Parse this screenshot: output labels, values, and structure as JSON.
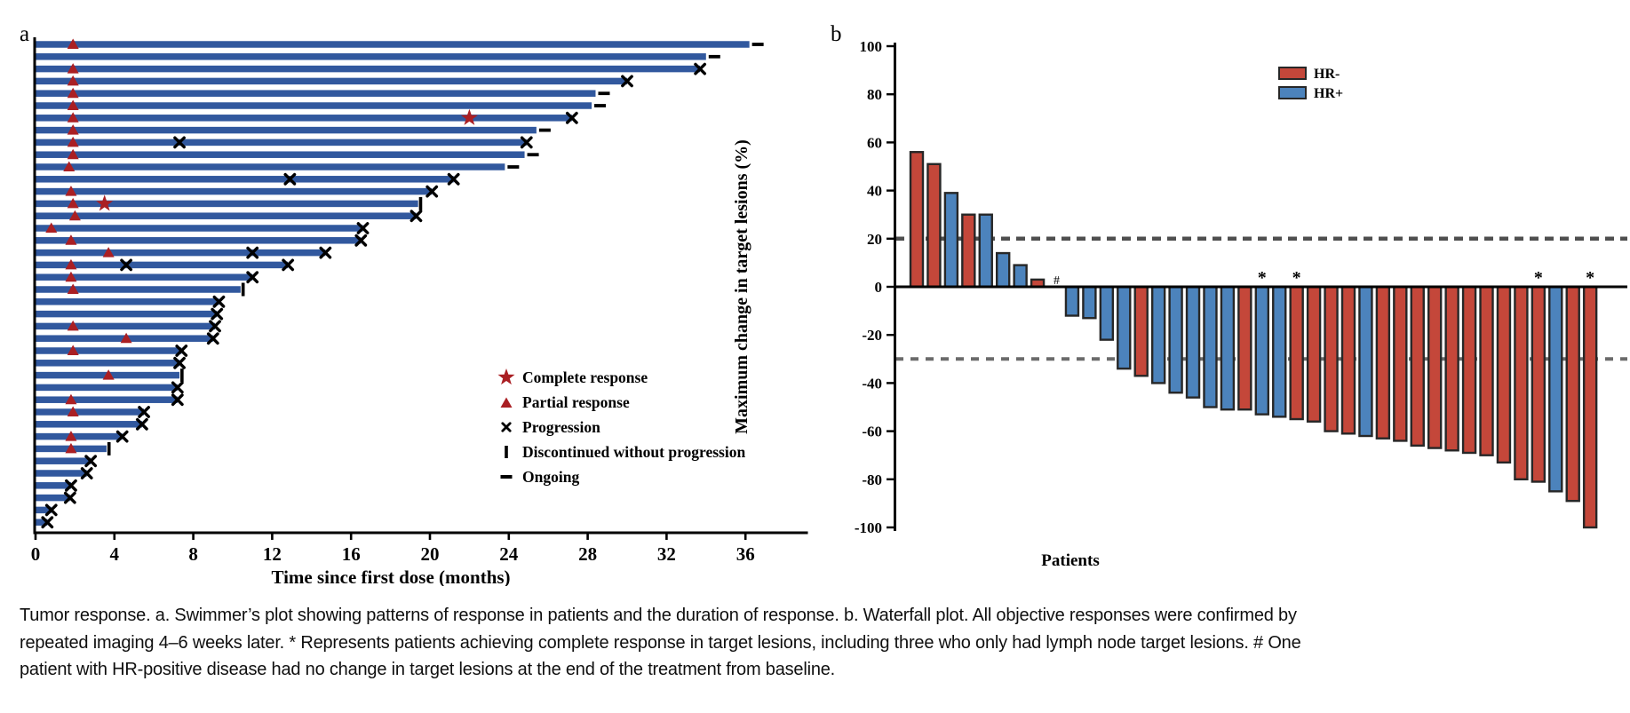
{
  "figure": {
    "panel_a_label": "a",
    "panel_b_label": "b",
    "caption": "Tumor response. a. Swimmer’s plot showing patterns of response in patients and the duration of response. b. Waterfall plot. All objective responses were confirmed by repeated imaging 4–6 weeks later. * Represents patients achieving complete response in target lesions, including three who only had lymph node target lesions. # One patient with HR-positive disease had no change in target lesions at the end of the treatment from baseline."
  },
  "colors": {
    "swimmer_bar": "#31589e",
    "marker_red": "#aa1f23",
    "hr_neg": "#c4473a",
    "hr_pos": "#4c83bc",
    "bar_outline": "#272727",
    "dash_line_upper": "#4f4f4f",
    "dash_line_lower": "#6b6b6b",
    "axis_black": "#000000"
  },
  "chart_data": [
    {
      "type": "swimmer",
      "title": "",
      "xlabel": "Time since first dose (months)",
      "x_ticks": [
        0,
        4,
        8,
        12,
        16,
        20,
        24,
        28,
        32,
        36
      ],
      "xlim": [
        0,
        39.2
      ],
      "legend": [
        {
          "marker": "star",
          "label": "Complete response"
        },
        {
          "marker": "triangle",
          "label": "Partial response"
        },
        {
          "marker": "x",
          "label": "Progression"
        },
        {
          "marker": "vbar",
          "label": "Discontinued without progression"
        },
        {
          "marker": "dash",
          "label": "Ongoing"
        }
      ],
      "patients": [
        {
          "bar": 36.2,
          "pr": 1.9,
          "end": "ongoing"
        },
        {
          "bar": 34.0,
          "end": "ongoing"
        },
        {
          "bar": 33.7,
          "pr": 1.9,
          "end": "progression"
        },
        {
          "bar": 30.0,
          "pr": 1.9,
          "end": "progression"
        },
        {
          "bar": 28.4,
          "pr": 1.9,
          "end": "ongoing"
        },
        {
          "bar": 28.2,
          "pr": 1.9,
          "end": "ongoing"
        },
        {
          "bar": 27.2,
          "pr": 1.9,
          "cr": 22.0,
          "end": "progression"
        },
        {
          "bar": 25.4,
          "pr": 1.9,
          "end": "ongoing"
        },
        {
          "bar": 24.9,
          "pr": 1.9,
          "x": [
            7.3
          ],
          "end": "progression"
        },
        {
          "bar": 24.8,
          "pr": 1.9,
          "end": "ongoing"
        },
        {
          "bar": 23.8,
          "pr": 1.7,
          "end": "ongoing"
        },
        {
          "bar": 21.2,
          "x": [
            12.9
          ],
          "end": "progression"
        },
        {
          "bar": 20.1,
          "pr": 1.8,
          "end": "progression"
        },
        {
          "bar": 19.4,
          "pr": 1.9,
          "cr": 3.5,
          "end": "discontinued"
        },
        {
          "bar": 19.3,
          "pr": 2.0,
          "end": "progression"
        },
        {
          "bar": 16.6,
          "pr": 0.8,
          "end": "progression"
        },
        {
          "bar": 16.5,
          "pr": 1.8,
          "end": "progression"
        },
        {
          "bar": 14.7,
          "pr": 3.7,
          "x": [
            11.0
          ],
          "end": "progression"
        },
        {
          "bar": 12.8,
          "pr": 1.8,
          "x": [
            4.6
          ],
          "end": "progression"
        },
        {
          "bar": 11.0,
          "pr": 1.8,
          "end": "progression"
        },
        {
          "bar": 10.4,
          "pr": 1.9,
          "end": "discontinued"
        },
        {
          "bar": 9.3,
          "end": "progression"
        },
        {
          "bar": 9.2,
          "end": "progression"
        },
        {
          "bar": 9.1,
          "pr": 1.9,
          "end": "progression"
        },
        {
          "bar": 9.0,
          "pr": 4.6,
          "end": "progression"
        },
        {
          "bar": 7.4,
          "pr": 1.9,
          "end": "progression"
        },
        {
          "bar": 7.3,
          "end": "progression"
        },
        {
          "bar": 7.3,
          "pr": 3.7,
          "end": "discontinued"
        },
        {
          "bar": 7.2,
          "end": "progression"
        },
        {
          "bar": 7.2,
          "pr": 1.8,
          "end": "progression"
        },
        {
          "bar": 5.5,
          "pr": 1.9,
          "end": "progression"
        },
        {
          "bar": 5.4,
          "end": "progression"
        },
        {
          "bar": 4.4,
          "pr": 1.8,
          "end": "progression"
        },
        {
          "bar": 3.6,
          "pr": 1.8,
          "end": "discontinued"
        },
        {
          "bar": 2.8,
          "end": "progression"
        },
        {
          "bar": 2.6,
          "end": "progression"
        },
        {
          "bar": 1.8,
          "end": "progression"
        },
        {
          "bar": 1.75,
          "end": "progression"
        },
        {
          "bar": 0.8,
          "end": "progression"
        },
        {
          "bar": 0.6,
          "end": "progression"
        }
      ]
    },
    {
      "type": "waterfall-bar",
      "ylabel": "Maximum change in target lesions (%)",
      "xlabel": "Patients",
      "y_ticks": [
        100,
        80,
        60,
        40,
        20,
        0,
        -20,
        -40,
        -60,
        -80,
        -100
      ],
      "ylim": [
        -100,
        100
      ],
      "reference_lines": [
        20,
        -30
      ],
      "legend": [
        {
          "label": "HR-",
          "group": "HR-"
        },
        {
          "label": "HR+",
          "group": "HR+"
        }
      ],
      "hash_symbol": "#",
      "star_symbol": "*",
      "bars": [
        {
          "v": 56,
          "g": "HR-"
        },
        {
          "v": 51,
          "g": "HR-"
        },
        {
          "v": 39,
          "g": "HR+"
        },
        {
          "v": 30,
          "g": "HR-"
        },
        {
          "v": 30,
          "g": "HR+"
        },
        {
          "v": 14,
          "g": "HR+"
        },
        {
          "v": 9,
          "g": "HR+"
        },
        {
          "v": 3,
          "g": "HR-"
        },
        {
          "v": 0,
          "g": "HR+",
          "hash": true
        },
        {
          "v": -12,
          "g": "HR+"
        },
        {
          "v": -13,
          "g": "HR+"
        },
        {
          "v": -22,
          "g": "HR+"
        },
        {
          "v": -34,
          "g": "HR+"
        },
        {
          "v": -37,
          "g": "HR-"
        },
        {
          "v": -40,
          "g": "HR+"
        },
        {
          "v": -44,
          "g": "HR+"
        },
        {
          "v": -46,
          "g": "HR+"
        },
        {
          "v": -50,
          "g": "HR+"
        },
        {
          "v": -51,
          "g": "HR+"
        },
        {
          "v": -51,
          "g": "HR-"
        },
        {
          "v": -53,
          "g": "HR+",
          "star": true
        },
        {
          "v": -54,
          "g": "HR+"
        },
        {
          "v": -55,
          "g": "HR-",
          "star": true
        },
        {
          "v": -56,
          "g": "HR-"
        },
        {
          "v": -60,
          "g": "HR-"
        },
        {
          "v": -61,
          "g": "HR-"
        },
        {
          "v": -62,
          "g": "HR+"
        },
        {
          "v": -63,
          "g": "HR-"
        },
        {
          "v": -64,
          "g": "HR-"
        },
        {
          "v": -66,
          "g": "HR-"
        },
        {
          "v": -67,
          "g": "HR-"
        },
        {
          "v": -68,
          "g": "HR-"
        },
        {
          "v": -69,
          "g": "HR-"
        },
        {
          "v": -70,
          "g": "HR-"
        },
        {
          "v": -73,
          "g": "HR-"
        },
        {
          "v": -80,
          "g": "HR-"
        },
        {
          "v": -81,
          "g": "HR-",
          "star": true
        },
        {
          "v": -85,
          "g": "HR+"
        },
        {
          "v": -89,
          "g": "HR-"
        },
        {
          "v": -100,
          "g": "HR-",
          "star": true
        }
      ]
    }
  ]
}
